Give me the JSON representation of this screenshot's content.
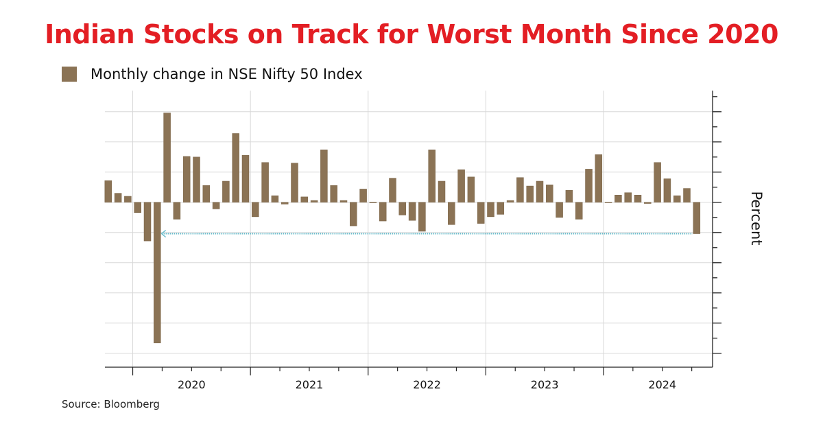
{
  "title": "Indian Stocks on Track for Worst Month Since 2020",
  "source": "Source: Bloomberg",
  "colors": {
    "title": "#e31e24",
    "bar": "#8b7355",
    "highlight_line": "#5fb8c9"
  },
  "chart_data": {
    "type": "bar",
    "title": "Indian Stocks on Track for Worst Month Since 2020",
    "legend": [
      "Monthly change in NSE Nifty 50 Index"
    ],
    "legend_placement": "top-left",
    "xlabel": "",
    "ylabel": "Percent",
    "ylim": [
      -27.3,
      18.5
    ],
    "y_major_step": 5,
    "y_minor_step": 2.5,
    "y_tick_labels_shown": false,
    "grid": true,
    "x_tick_labels": [
      "2020",
      "2021",
      "2022",
      "2023",
      "2024"
    ],
    "categories": [
      "2019-10",
      "2019-11",
      "2019-12",
      "2020-01",
      "2020-02",
      "2020-03",
      "2020-04",
      "2020-05",
      "2020-06",
      "2020-07",
      "2020-08",
      "2020-09",
      "2020-10",
      "2020-11",
      "2020-12",
      "2021-01",
      "2021-02",
      "2021-03",
      "2021-04",
      "2021-05",
      "2021-06",
      "2021-07",
      "2021-08",
      "2021-09",
      "2021-10",
      "2021-11",
      "2021-12",
      "2022-01",
      "2022-02",
      "2022-03",
      "2022-04",
      "2022-05",
      "2022-06",
      "2022-07",
      "2022-08",
      "2022-09",
      "2022-10",
      "2022-11",
      "2022-12",
      "2023-01",
      "2023-02",
      "2023-03",
      "2023-04",
      "2023-05",
      "2023-06",
      "2023-07",
      "2023-08",
      "2023-09",
      "2023-10",
      "2023-11",
      "2023-12",
      "2024-01",
      "2024-02",
      "2024-03",
      "2024-04",
      "2024-05",
      "2024-06",
      "2024-07",
      "2024-08",
      "2024-09",
      "2024-10"
    ],
    "series": [
      {
        "name": "Monthly change in NSE Nifty 50 Index",
        "values": [
          3.6,
          1.5,
          1.0,
          -1.7,
          -6.4,
          -23.3,
          14.8,
          -2.8,
          7.6,
          7.5,
          2.8,
          -1.1,
          3.5,
          11.4,
          7.8,
          -2.4,
          6.6,
          1.1,
          -0.3,
          6.5,
          0.9,
          0.3,
          8.7,
          2.8,
          0.3,
          -3.9,
          2.2,
          -0.1,
          -3.1,
          4.0,
          -2.1,
          -3.0,
          -4.8,
          8.7,
          3.5,
          -3.7,
          5.4,
          4.2,
          -3.5,
          -2.4,
          -2.0,
          0.3,
          4.1,
          2.7,
          3.5,
          2.9,
          -2.5,
          2.0,
          -2.8,
          5.5,
          7.9,
          0.0,
          1.2,
          1.6,
          1.2,
          -0.2,
          6.6,
          3.9,
          1.1,
          2.3,
          -5.2
        ]
      }
    ],
    "annotations": [
      {
        "type": "horizontal-arrow",
        "value": -5.2,
        "from": "2024-10",
        "to": "2020-04"
      }
    ]
  }
}
